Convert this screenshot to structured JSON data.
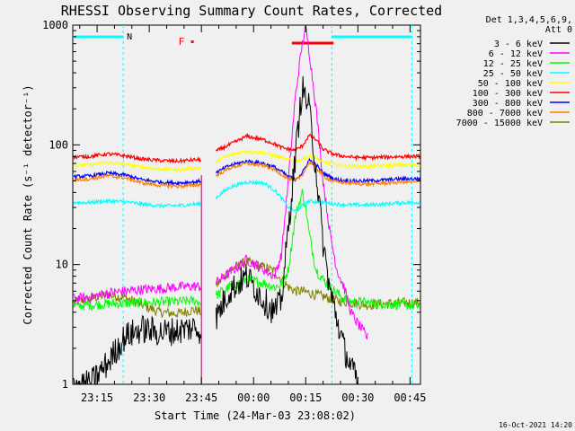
{
  "chart_data": {
    "type": "line",
    "title": "RHESSI Observing Summary Count Rates, Corrected",
    "ylabel": "Corrected Count Rate (s⁻¹ detector⁻¹)",
    "xlabel": "Start Time (24-Mar-03 23:08:02)",
    "footer": "16-Oct-2021 14:20",
    "yscale": "log",
    "ylim": [
      1,
      1000
    ],
    "ytick_labels": [
      "1",
      "10",
      "100",
      "1000"
    ],
    "xlim_minutes": [
      0,
      100
    ],
    "xticks": [
      {
        "t": 7,
        "label": "23:15"
      },
      {
        "t": 22,
        "label": "23:30"
      },
      {
        "t": 37,
        "label": "23:45"
      },
      {
        "t": 52,
        "label": "00:00"
      },
      {
        "t": 67,
        "label": "00:15"
      },
      {
        "t": 82,
        "label": "00:30"
      },
      {
        "t": 97,
        "label": "00:45"
      }
    ],
    "legend": {
      "placement": "right",
      "header": [
        "Det 1,3,4,5,6,9,",
        "Att 0"
      ]
    },
    "flags": {
      "n_label": "N",
      "f_label": "F",
      "night": [
        [
          -1.5,
          14.5
        ],
        [
          74.5,
          97.5
        ]
      ],
      "flare_mark_t": [
        34,
        34.5
      ],
      "flare_bar_t": [
        63,
        75
      ]
    },
    "gaps": [
      [
        37,
        41
      ]
    ],
    "series": [
      {
        "name": "3 - 6 keV",
        "color": "#000000",
        "t": [
          0,
          5,
          10,
          15,
          20,
          25,
          30,
          35,
          37,
          41,
          45,
          50,
          55,
          58,
          60,
          62,
          64,
          66,
          68,
          70,
          72,
          74,
          76,
          78,
          80,
          82
        ],
        "v": [
          1.0,
          1.0,
          1.5,
          2.5,
          2.9,
          2.7,
          2.8,
          3.0,
          2.8,
          3.5,
          6.0,
          8.0,
          5.0,
          4.0,
          5.0,
          20,
          80,
          300,
          200,
          60,
          15,
          6,
          3.5,
          2,
          1.4,
          1.0
        ]
      },
      {
        "name": "6 - 12 keV",
        "color": "#ff00ff",
        "t": [
          0,
          5,
          10,
          15,
          20,
          25,
          30,
          35,
          37,
          41,
          45,
          50,
          55,
          58,
          60,
          62,
          64,
          66,
          67,
          68,
          70,
          72,
          74,
          76,
          78,
          80,
          82,
          85
        ],
        "v": [
          5.2,
          5.3,
          5.8,
          6.0,
          6.2,
          6.3,
          6.5,
          6.6,
          6.5,
          7.0,
          8.5,
          11,
          9,
          8,
          12,
          50,
          250,
          700,
          950,
          600,
          200,
          50,
          18,
          9,
          6.5,
          4.0,
          3.2,
          2.4
        ]
      },
      {
        "name": "12 - 25 keV",
        "color": "#00ff00",
        "t": [
          0,
          10,
          20,
          30,
          35,
          37,
          41,
          45,
          50,
          55,
          58,
          60,
          62,
          64,
          66,
          67,
          68,
          70,
          72,
          74,
          76,
          78,
          80,
          85,
          90,
          95,
          100
        ],
        "v": [
          4.5,
          4.7,
          4.8,
          4.9,
          5.0,
          4.8,
          5.5,
          6.5,
          7.5,
          7.0,
          6.5,
          6.8,
          9,
          25,
          40,
          30,
          18,
          9,
          7.5,
          6.5,
          5.8,
          5.2,
          4.9,
          4.8,
          4.7,
          4.6,
          4.5
        ]
      },
      {
        "name": "25 - 50 keV",
        "color": "#00ffff",
        "t": [
          0,
          5,
          10,
          15,
          20,
          25,
          30,
          35,
          37,
          41,
          45,
          50,
          55,
          58,
          60,
          62,
          64,
          66,
          68,
          70,
          72,
          74,
          76,
          80,
          85,
          90,
          95,
          100
        ],
        "v": [
          33,
          33,
          34,
          33.5,
          32,
          31,
          31,
          32,
          32,
          36,
          44,
          49,
          48,
          42,
          36,
          30,
          28,
          31,
          34,
          33.5,
          33,
          32.5,
          32,
          31.5,
          31.5,
          32,
          33,
          33
        ]
      },
      {
        "name": "50 - 100 keV",
        "color": "#ffff00",
        "t": [
          0,
          5,
          10,
          15,
          20,
          25,
          30,
          35,
          37,
          41,
          45,
          50,
          55,
          58,
          60,
          62,
          64,
          66,
          68,
          70,
          72,
          74,
          76,
          80,
          85,
          90,
          95,
          100
        ],
        "v": [
          67,
          68,
          71,
          69,
          65,
          63,
          62,
          64,
          64,
          72,
          82,
          89,
          86,
          81,
          78,
          75,
          73,
          76,
          80,
          77,
          72,
          70,
          68,
          66,
          66,
          67,
          68,
          68
        ]
      },
      {
        "name": "100 - 300 keV",
        "color": "#ff0000",
        "t": [
          0,
          5,
          10,
          15,
          20,
          25,
          30,
          35,
          37,
          41,
          45,
          50,
          55,
          58,
          60,
          62,
          64,
          66,
          68,
          70,
          72,
          74,
          76,
          80,
          85,
          90,
          95,
          100
        ],
        "v": [
          79,
          80,
          84,
          81,
          76,
          74,
          73,
          75,
          75,
          88,
          100,
          118,
          110,
          102,
          95,
          92,
          90,
          98,
          120,
          110,
          92,
          86,
          82,
          79,
          78,
          79,
          80,
          80
        ]
      },
      {
        "name": "300 - 800 keV",
        "color": "#0000ff",
        "t": [
          0,
          5,
          10,
          15,
          20,
          25,
          30,
          35,
          37,
          41,
          45,
          50,
          55,
          58,
          60,
          62,
          64,
          66,
          68,
          70,
          72,
          74,
          76,
          80,
          85,
          90,
          95,
          100
        ],
        "v": [
          54,
          55,
          58,
          56,
          51,
          49,
          48,
          49,
          50,
          58,
          67,
          73,
          70,
          65,
          60,
          54,
          52,
          58,
          75,
          68,
          58,
          54,
          51,
          50,
          50,
          51,
          52,
          52
        ]
      },
      {
        "name": "800 - 7000 keV",
        "color": "#ff7f00",
        "t": [
          0,
          5,
          10,
          15,
          20,
          25,
          30,
          35,
          37,
          41,
          45,
          50,
          55,
          58,
          60,
          62,
          64,
          66,
          68,
          70,
          72,
          74,
          76,
          80,
          85,
          90,
          95,
          100
        ],
        "v": [
          51,
          52,
          55,
          53,
          48,
          46,
          45,
          46,
          47,
          55,
          64,
          70,
          67,
          62,
          57,
          52,
          50,
          56,
          72,
          65,
          55,
          51,
          49,
          48,
          47,
          48,
          49,
          49
        ]
      },
      {
        "name": "7000 - 15000 keV",
        "color": "#808000",
        "t": [
          0,
          5,
          10,
          15,
          20,
          25,
          30,
          35,
          37,
          41,
          45,
          50,
          55,
          58,
          60,
          62,
          64,
          66,
          68,
          70,
          72,
          74,
          76,
          80,
          85,
          90,
          95,
          100
        ],
        "v": [
          4.8,
          5.2,
          5.6,
          5.3,
          4.6,
          4.0,
          3.9,
          4.2,
          4.0,
          6.5,
          9,
          10.5,
          9.5,
          8.8,
          7.5,
          6.5,
          6.0,
          6.0,
          5.8,
          5.6,
          5.4,
          5.2,
          5.0,
          4.8,
          4.6,
          4.7,
          4.8,
          4.8
        ]
      }
    ]
  }
}
